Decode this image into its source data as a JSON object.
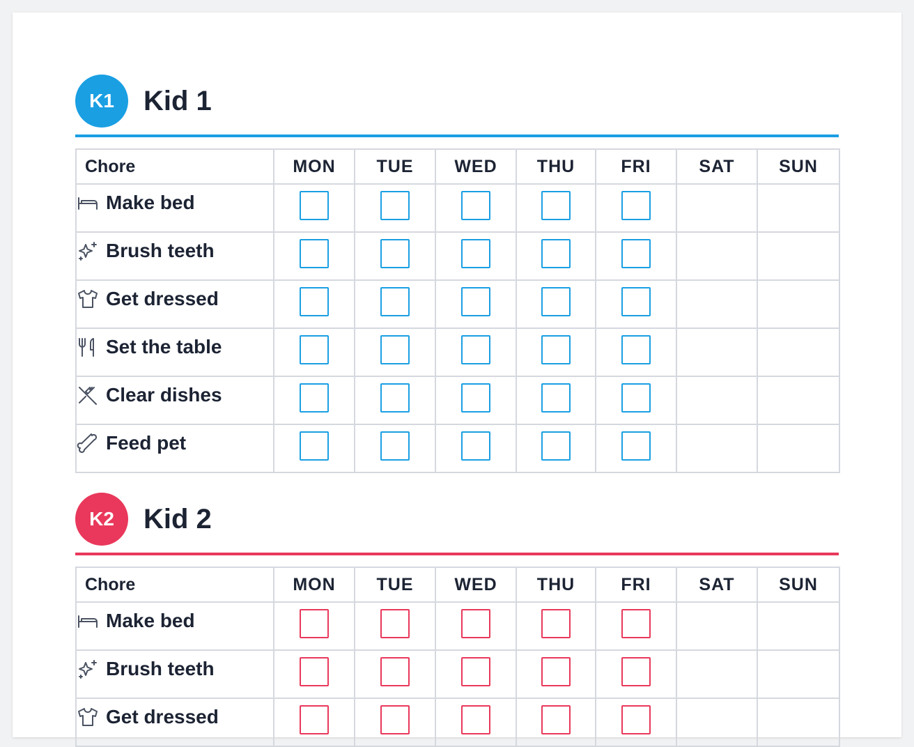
{
  "kids": [
    {
      "badge": "K1",
      "name": "Kid 1",
      "color": "#1a9fe3",
      "header": {
        "chore": "Chore",
        "days": [
          "MON",
          "TUE",
          "WED",
          "THU",
          "FRI",
          "SAT",
          "SUN"
        ]
      },
      "checkable_days": [
        "MON",
        "TUE",
        "WED",
        "THU",
        "FRI"
      ],
      "chores": [
        {
          "icon": "bed-icon",
          "label": "Make bed"
        },
        {
          "icon": "sparkle-icon",
          "label": "Brush teeth"
        },
        {
          "icon": "shirt-icon",
          "label": "Get dressed"
        },
        {
          "icon": "utensils-icon",
          "label": "Set the table"
        },
        {
          "icon": "utensils-crossed-icon",
          "label": "Clear dishes"
        },
        {
          "icon": "bone-icon",
          "label": "Feed pet"
        }
      ]
    },
    {
      "badge": "K2",
      "name": "Kid 2",
      "color": "#e9385b",
      "header": {
        "chore": "Chore",
        "days": [
          "MON",
          "TUE",
          "WED",
          "THU",
          "FRI",
          "SAT",
          "SUN"
        ]
      },
      "checkable_days": [
        "MON",
        "TUE",
        "WED",
        "THU",
        "FRI"
      ],
      "chores": [
        {
          "icon": "bed-icon",
          "label": "Make bed"
        },
        {
          "icon": "sparkle-icon",
          "label": "Brush teeth"
        },
        {
          "icon": "shirt-icon",
          "label": "Get dressed"
        }
      ]
    }
  ]
}
